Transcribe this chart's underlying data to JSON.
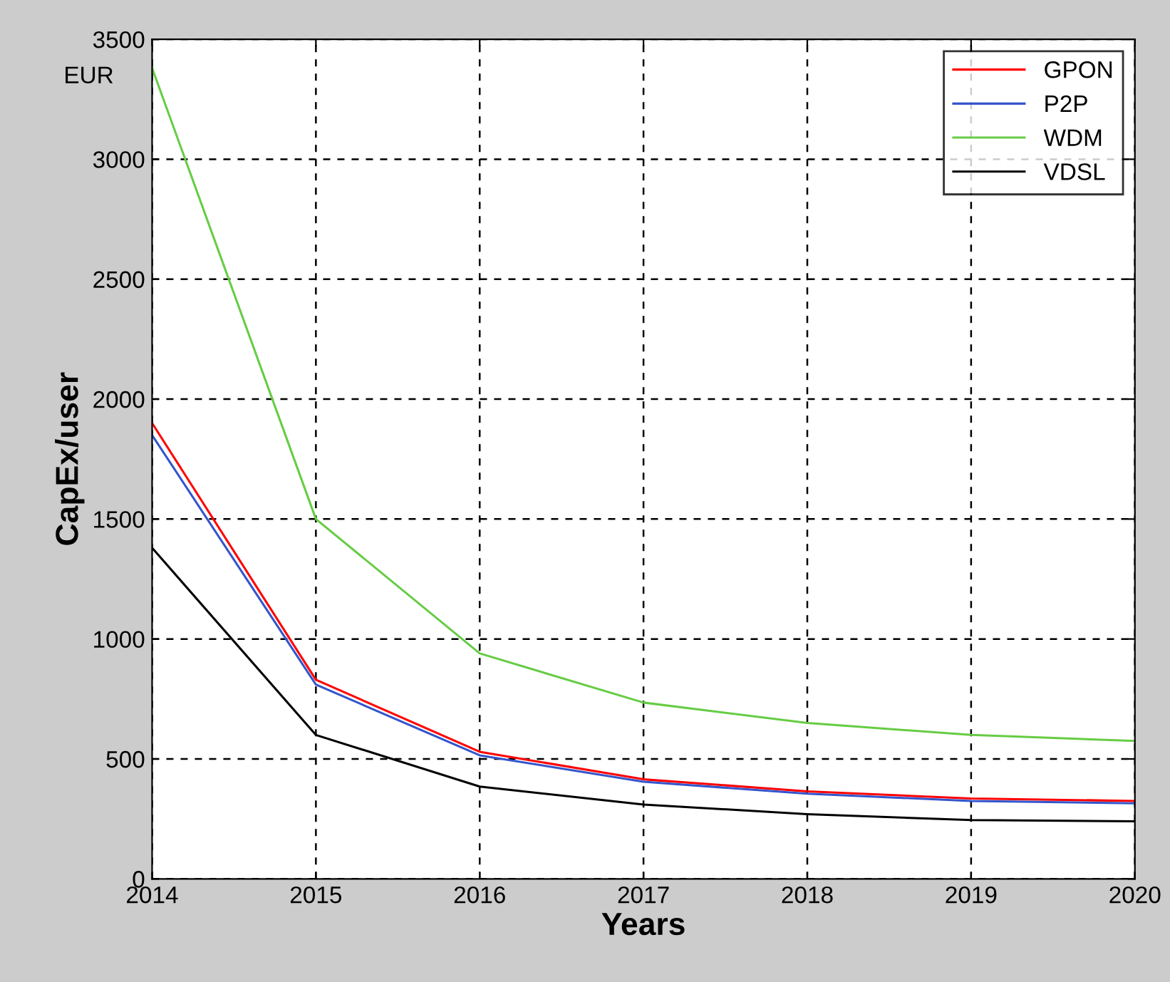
{
  "chart_data": {
    "type": "line",
    "xlabel": "Years",
    "ylabel": "CapEx/user",
    "annotations": [
      "EUR"
    ],
    "x": [
      2014,
      2015,
      2016,
      2017,
      2018,
      2019,
      2020
    ],
    "series": [
      {
        "name": "GPON",
        "color": "#ff0000",
        "values": [
          1900,
          830,
          530,
          415,
          365,
          335,
          325
        ]
      },
      {
        "name": "P2P",
        "color": "#3355cc",
        "values": [
          1850,
          810,
          515,
          405,
          355,
          325,
          315
        ]
      },
      {
        "name": "WDM",
        "color": "#66cc44",
        "values": [
          3380,
          1500,
          940,
          735,
          650,
          600,
          575
        ]
      },
      {
        "name": "VDSL",
        "color": "#000000",
        "values": [
          1380,
          600,
          385,
          310,
          270,
          245,
          240
        ]
      }
    ],
    "xlim": [
      2014,
      2020
    ],
    "xticks": [
      2014,
      2015,
      2016,
      2017,
      2018,
      2019,
      2020
    ],
    "ylim": [
      0,
      3500
    ],
    "yticks": [
      0,
      500,
      1000,
      1500,
      2000,
      2500,
      3000,
      3500
    ],
    "grid": true,
    "legend": "top right",
    "marker": "none",
    "line_style": "solid"
  }
}
